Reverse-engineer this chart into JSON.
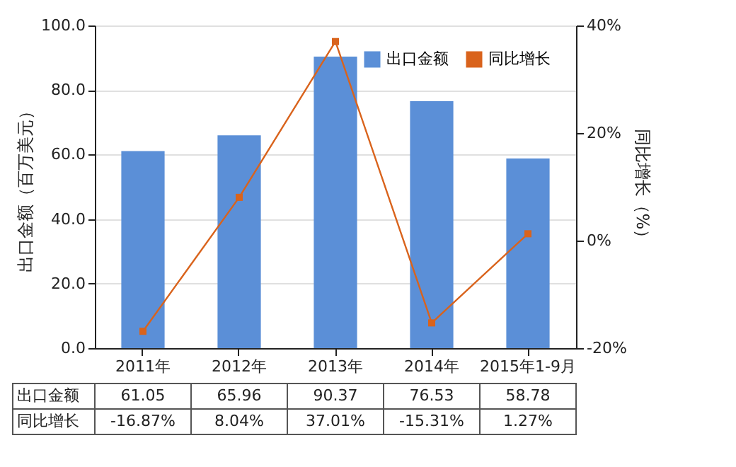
{
  "chart_data": {
    "type": "bar",
    "categories": [
      "2011年",
      "2012年",
      "2013年",
      "2014年",
      "2015年1-9月"
    ],
    "ylabel": "出口金额（百万美元）",
    "y2label": "同比增长（%）",
    "series": [
      {
        "name": "出口金额",
        "color": "#5b8fd7",
        "values": [
          61.05,
          65.96,
          90.37,
          76.53,
          58.78
        ],
        "value_labels": [
          "61.05",
          "65.96",
          "90.37",
          "76.53",
          "58.78"
        ]
      },
      {
        "name": "同比增长",
        "type": "line",
        "axis": "y2",
        "color": "#d9631c",
        "marker": "square",
        "line_style": "solid",
        "values": [
          -16.87,
          8.04,
          37.01,
          -15.31,
          1.27
        ],
        "value_labels": [
          "-16.87%",
          "8.04%",
          "37.01%",
          "-15.31%",
          "1.27%"
        ]
      }
    ],
    "ylim": [
      0,
      100
    ],
    "yticks": [
      {
        "value": 0,
        "label": "0.0"
      },
      {
        "value": 20,
        "label": "20.0"
      },
      {
        "value": 40,
        "label": "40.0"
      },
      {
        "value": 60,
        "label": "60.0"
      },
      {
        "value": 80,
        "label": "80.0"
      },
      {
        "value": 100,
        "label": "100.0"
      }
    ],
    "y2lim": [
      -20,
      40
    ],
    "y2ticks": [
      {
        "value": -20,
        "label": "-20%"
      },
      {
        "value": 0,
        "label": "0%"
      },
      {
        "value": 20,
        "label": "20%"
      },
      {
        "value": 40,
        "label": "40%"
      }
    ],
    "grid": "y",
    "legend": "top right"
  }
}
